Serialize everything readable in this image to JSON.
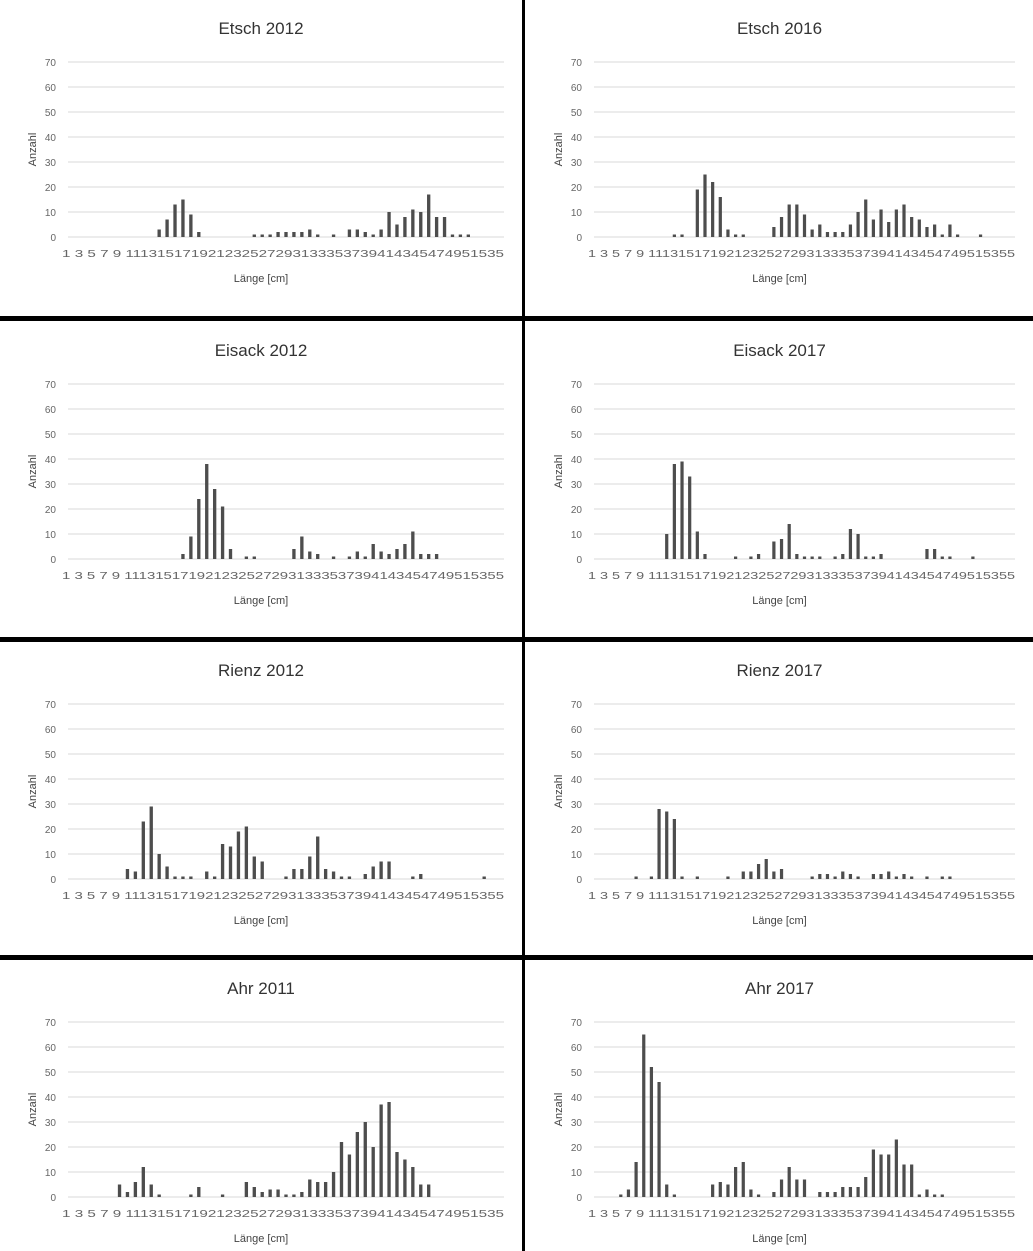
{
  "chart_data": [
    {
      "type": "bar",
      "title": "Etsch 2012",
      "xlabel": "Länge [cm]",
      "ylabel": "Anzahl",
      "ylim": [
        0,
        70
      ],
      "yticks": [
        "0",
        "10",
        "20",
        "30",
        "40",
        "50",
        "60",
        "70"
      ],
      "xticks_text": "1 3 5 7 9 111315171921232527293133353739414345474951535",
      "categories": [
        1,
        2,
        3,
        4,
        5,
        6,
        7,
        8,
        9,
        10,
        11,
        12,
        13,
        14,
        15,
        16,
        17,
        18,
        19,
        20,
        21,
        22,
        23,
        24,
        25,
        26,
        27,
        28,
        29,
        30,
        31,
        32,
        33,
        34,
        35,
        36,
        37,
        38,
        39,
        40,
        41,
        42,
        43,
        44,
        45,
        46,
        47,
        48,
        49,
        50,
        51,
        52,
        53,
        54,
        55
      ],
      "values": [
        0,
        0,
        0,
        0,
        0,
        0,
        0,
        0,
        0,
        0,
        0,
        3,
        7,
        13,
        15,
        9,
        2,
        0,
        0,
        0,
        0,
        0,
        0,
        1,
        1,
        1,
        2,
        2,
        2,
        2,
        3,
        1,
        0,
        1,
        0,
        3,
        3,
        2,
        1,
        3,
        10,
        5,
        8,
        11,
        10,
        17,
        8,
        8,
        1,
        1,
        1,
        0,
        0,
        0,
        0
      ],
      "grid": true,
      "legend": "none"
    },
    {
      "type": "bar",
      "title": "Etsch 2016",
      "xlabel": "Länge [cm]",
      "ylabel": "Anzahl",
      "ylim": [
        0,
        70
      ],
      "yticks": [
        "0",
        "10",
        "20",
        "30",
        "40",
        "50",
        "60",
        "70"
      ],
      "xticks_text": "1 3 5 7 9 1113151719212325272931333537394143454749515355",
      "categories": [
        1,
        2,
        3,
        4,
        5,
        6,
        7,
        8,
        9,
        10,
        11,
        12,
        13,
        14,
        15,
        16,
        17,
        18,
        19,
        20,
        21,
        22,
        23,
        24,
        25,
        26,
        27,
        28,
        29,
        30,
        31,
        32,
        33,
        34,
        35,
        36,
        37,
        38,
        39,
        40,
        41,
        42,
        43,
        44,
        45,
        46,
        47,
        48,
        49,
        50,
        51,
        52,
        53,
        54,
        55
      ],
      "values": [
        0,
        0,
        0,
        0,
        0,
        0,
        0,
        0,
        0,
        0,
        1,
        1,
        0,
        19,
        25,
        22,
        16,
        3,
        1,
        1,
        0,
        0,
        0,
        4,
        8,
        13,
        13,
        9,
        3,
        5,
        2,
        2,
        2,
        5,
        10,
        15,
        7,
        11,
        6,
        11,
        13,
        8,
        7,
        4,
        5,
        1,
        5,
        1,
        0,
        0,
        1,
        0,
        0,
        0,
        0
      ],
      "grid": true,
      "legend": "none"
    },
    {
      "type": "bar",
      "title": "Eisack 2012",
      "xlabel": "Länge [cm]",
      "ylabel": "Anzahl",
      "ylim": [
        0,
        70
      ],
      "yticks": [
        "0",
        "10",
        "20",
        "30",
        "40",
        "50",
        "60",
        "70"
      ],
      "xticks_text": "1 3 5 7 9 1113151719212325272931333537394143454749515355",
      "categories": [
        1,
        2,
        3,
        4,
        5,
        6,
        7,
        8,
        9,
        10,
        11,
        12,
        13,
        14,
        15,
        16,
        17,
        18,
        19,
        20,
        21,
        22,
        23,
        24,
        25,
        26,
        27,
        28,
        29,
        30,
        31,
        32,
        33,
        34,
        35,
        36,
        37,
        38,
        39,
        40,
        41,
        42,
        43,
        44,
        45,
        46,
        47,
        48,
        49,
        50,
        51,
        52,
        53,
        54,
        55
      ],
      "values": [
        0,
        0,
        0,
        0,
        0,
        0,
        0,
        0,
        0,
        0,
        0,
        0,
        0,
        0,
        2,
        9,
        24,
        38,
        28,
        21,
        4,
        0,
        1,
        1,
        0,
        0,
        0,
        0,
        4,
        9,
        3,
        2,
        0,
        1,
        0,
        1,
        3,
        1,
        6,
        3,
        2,
        4,
        6,
        11,
        2,
        2,
        2,
        0,
        0,
        0,
        0,
        0,
        0,
        0,
        0
      ],
      "grid": true,
      "legend": "none"
    },
    {
      "type": "bar",
      "title": "Eisack 2017",
      "xlabel": "Länge [cm]",
      "ylabel": "Anzahl",
      "ylim": [
        0,
        70
      ],
      "yticks": [
        "0",
        "10",
        "20",
        "30",
        "40",
        "50",
        "60",
        "70"
      ],
      "xticks_text": "1 3 5 7 9 1113151719212325272931333537394143454749515355",
      "categories": [
        1,
        2,
        3,
        4,
        5,
        6,
        7,
        8,
        9,
        10,
        11,
        12,
        13,
        14,
        15,
        16,
        17,
        18,
        19,
        20,
        21,
        22,
        23,
        24,
        25,
        26,
        27,
        28,
        29,
        30,
        31,
        32,
        33,
        34,
        35,
        36,
        37,
        38,
        39,
        40,
        41,
        42,
        43,
        44,
        45,
        46,
        47,
        48,
        49,
        50,
        51,
        52,
        53,
        54,
        55
      ],
      "values": [
        0,
        0,
        0,
        0,
        0,
        0,
        0,
        0,
        0,
        10,
        38,
        39,
        33,
        11,
        2,
        0,
        0,
        0,
        1,
        0,
        1,
        2,
        0,
        7,
        8,
        14,
        2,
        1,
        1,
        1,
        0,
        1,
        2,
        12,
        10,
        1,
        1,
        2,
        0,
        0,
        0,
        0,
        0,
        4,
        4,
        1,
        1,
        0,
        0,
        1,
        0,
        0,
        0,
        0,
        0
      ],
      "grid": true,
      "legend": "none"
    },
    {
      "type": "bar",
      "title": "Rienz 2012",
      "xlabel": "Länge [cm]",
      "ylabel": "Anzahl",
      "ylim": [
        0,
        70
      ],
      "yticks": [
        "0",
        "10",
        "20",
        "30",
        "40",
        "50",
        "60",
        "70"
      ],
      "xticks_text": "1 3 5 7 9 1113151719212325272931333537394143454749515355",
      "categories": [
        1,
        2,
        3,
        4,
        5,
        6,
        7,
        8,
        9,
        10,
        11,
        12,
        13,
        14,
        15,
        16,
        17,
        18,
        19,
        20,
        21,
        22,
        23,
        24,
        25,
        26,
        27,
        28,
        29,
        30,
        31,
        32,
        33,
        34,
        35,
        36,
        37,
        38,
        39,
        40,
        41,
        42,
        43,
        44,
        45,
        46,
        47,
        48,
        49,
        50,
        51,
        52,
        53,
        54,
        55
      ],
      "values": [
        0,
        0,
        0,
        0,
        0,
        0,
        0,
        4,
        3,
        23,
        29,
        10,
        5,
        1,
        1,
        1,
        0,
        3,
        1,
        14,
        13,
        19,
        21,
        9,
        7,
        0,
        0,
        1,
        4,
        4,
        9,
        17,
        4,
        3,
        1,
        1,
        0,
        2,
        5,
        7,
        7,
        0,
        0,
        1,
        2,
        0,
        0,
        0,
        0,
        0,
        0,
        0,
        1,
        0,
        0
      ],
      "grid": true,
      "legend": "none"
    },
    {
      "type": "bar",
      "title": "Rienz 2017",
      "xlabel": "Länge [cm]",
      "ylabel": "Anzahl",
      "ylim": [
        0,
        70
      ],
      "yticks": [
        "0",
        "10",
        "20",
        "30",
        "40",
        "50",
        "60",
        "70"
      ],
      "xticks_text": "1 3 5 7 9 1113151719212325272931333537394143454749515355",
      "categories": [
        1,
        2,
        3,
        4,
        5,
        6,
        7,
        8,
        9,
        10,
        11,
        12,
        13,
        14,
        15,
        16,
        17,
        18,
        19,
        20,
        21,
        22,
        23,
        24,
        25,
        26,
        27,
        28,
        29,
        30,
        31,
        32,
        33,
        34,
        35,
        36,
        37,
        38,
        39,
        40,
        41,
        42,
        43,
        44,
        45,
        46,
        47,
        48,
        49,
        50,
        51,
        52,
        53,
        54,
        55
      ],
      "values": [
        0,
        0,
        0,
        0,
        0,
        1,
        0,
        1,
        28,
        27,
        24,
        1,
        0,
        1,
        0,
        0,
        0,
        1,
        0,
        3,
        3,
        6,
        8,
        3,
        4,
        0,
        0,
        0,
        1,
        2,
        2,
        1,
        3,
        2,
        1,
        0,
        2,
        2,
        3,
        1,
        2,
        1,
        0,
        1,
        0,
        1,
        1,
        0,
        0,
        0,
        0,
        0,
        0,
        0,
        0
      ],
      "grid": true,
      "legend": "none"
    },
    {
      "type": "bar",
      "title": "Ahr 2011",
      "xlabel": "Länge [cm]",
      "ylabel": "Anzahl",
      "ylim": [
        0,
        70
      ],
      "yticks": [
        "0",
        "10",
        "20",
        "30",
        "40",
        "50",
        "60",
        "70"
      ],
      "xticks_text": "1 3 5 7 9 111315171921232527293133353739414345474951535",
      "categories": [
        1,
        2,
        3,
        4,
        5,
        6,
        7,
        8,
        9,
        10,
        11,
        12,
        13,
        14,
        15,
        16,
        17,
        18,
        19,
        20,
        21,
        22,
        23,
        24,
        25,
        26,
        27,
        28,
        29,
        30,
        31,
        32,
        33,
        34,
        35,
        36,
        37,
        38,
        39,
        40,
        41,
        42,
        43,
        44,
        45,
        46,
        47,
        48,
        49,
        50,
        51,
        52,
        53,
        54,
        55
      ],
      "values": [
        0,
        0,
        0,
        0,
        0,
        0,
        5,
        2,
        6,
        12,
        5,
        1,
        0,
        0,
        0,
        1,
        4,
        0,
        0,
        1,
        0,
        0,
        6,
        4,
        2,
        3,
        3,
        1,
        1,
        2,
        7,
        6,
        6,
        10,
        22,
        17,
        26,
        30,
        20,
        37,
        38,
        18,
        15,
        12,
        5,
        5,
        0,
        0,
        0,
        0,
        0,
        0,
        0,
        0,
        0
      ],
      "grid": true,
      "legend": "none"
    },
    {
      "type": "bar",
      "title": "Ahr 2017",
      "xlabel": "Länge [cm]",
      "ylabel": "Anzahl",
      "ylim": [
        0,
        70
      ],
      "yticks": [
        "0",
        "10",
        "20",
        "30",
        "40",
        "50",
        "60",
        "70"
      ],
      "xticks_text": "1 3 5 7 9 1113151719212325272931333537394143454749515355",
      "categories": [
        1,
        2,
        3,
        4,
        5,
        6,
        7,
        8,
        9,
        10,
        11,
        12,
        13,
        14,
        15,
        16,
        17,
        18,
        19,
        20,
        21,
        22,
        23,
        24,
        25,
        26,
        27,
        28,
        29,
        30,
        31,
        32,
        33,
        34,
        35,
        36,
        37,
        38,
        39,
        40,
        41,
        42,
        43,
        44,
        45,
        46,
        47,
        48,
        49,
        50,
        51,
        52,
        53,
        54,
        55
      ],
      "values": [
        0,
        0,
        0,
        1,
        3,
        14,
        65,
        52,
        46,
        5,
        1,
        0,
        0,
        0,
        0,
        5,
        6,
        5,
        12,
        14,
        3,
        1,
        0,
        2,
        7,
        12,
        7,
        7,
        0,
        2,
        2,
        2,
        4,
        4,
        4,
        8,
        19,
        17,
        17,
        23,
        13,
        13,
        1,
        3,
        1,
        1,
        0,
        0,
        0,
        0,
        0,
        0,
        0,
        0,
        0
      ],
      "grid": true,
      "legend": "none"
    }
  ]
}
